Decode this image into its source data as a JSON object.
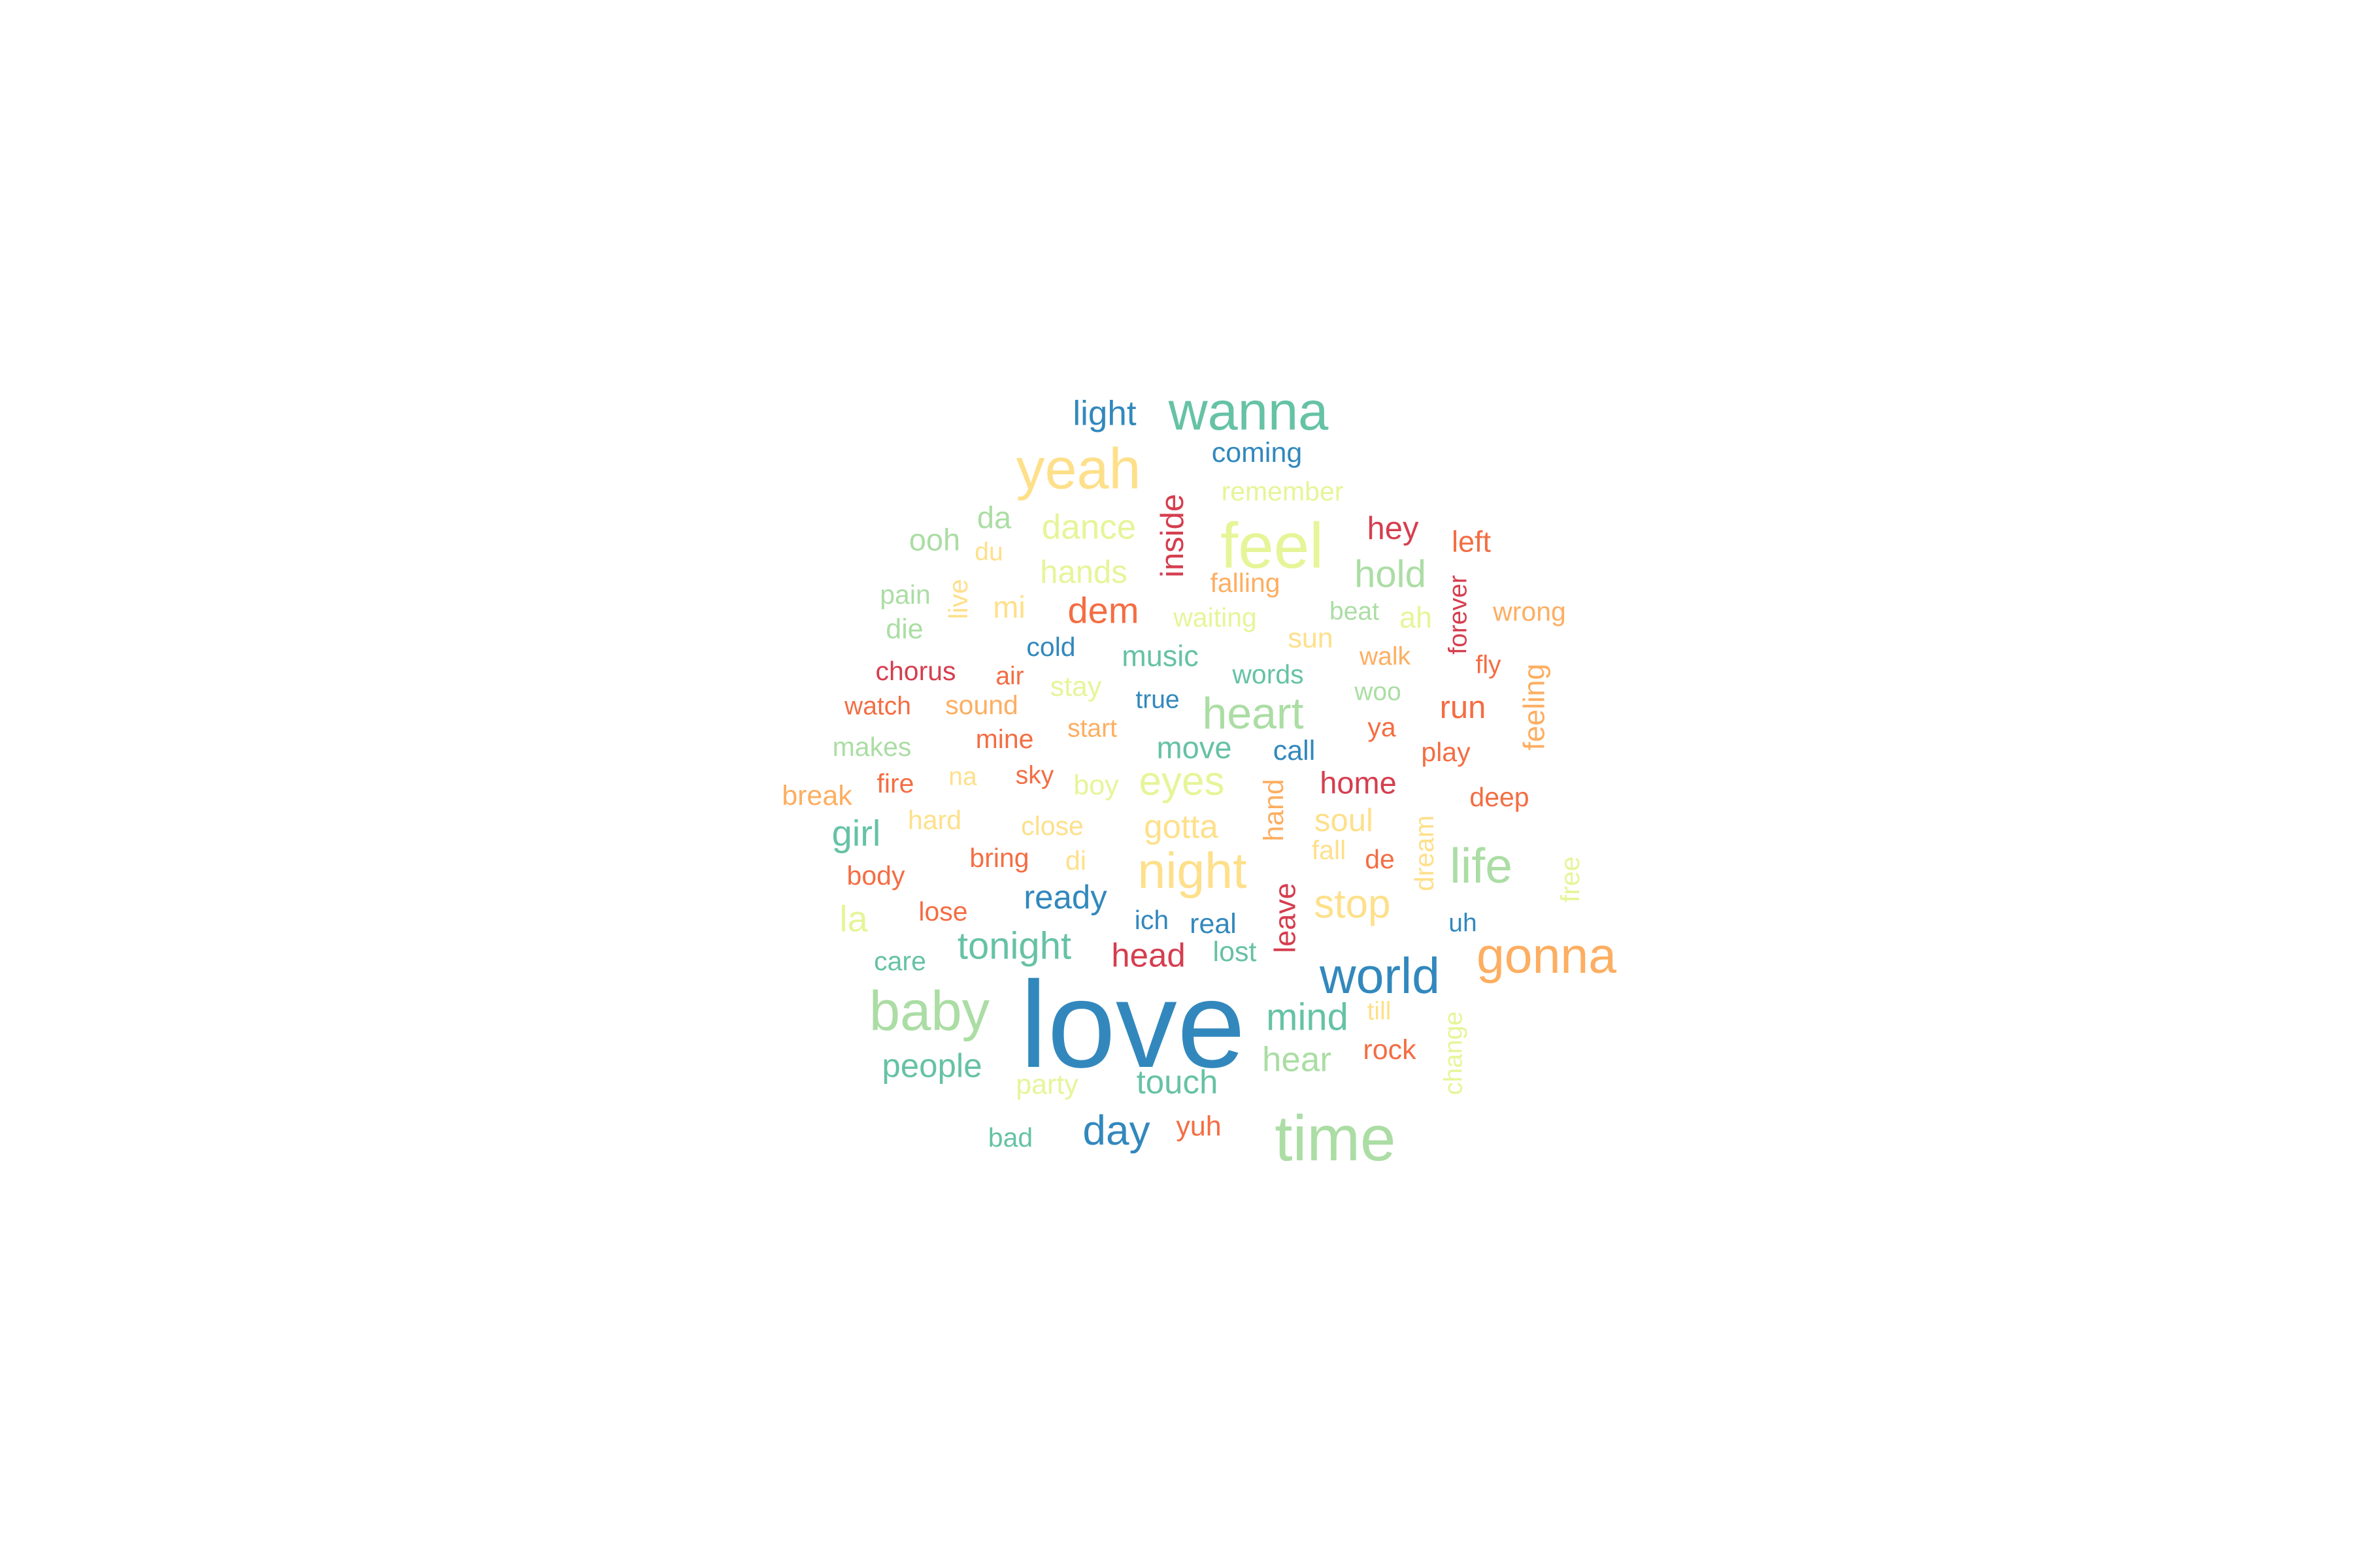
{
  "word_cloud": {
    "palette": {
      "c1": "#d53e4f",
      "c2": "#f46d43",
      "c3": "#fdae61",
      "c4": "#fee08b",
      "c5": "#e6f598",
      "c6": "#abdda4",
      "c7": "#66c2a5",
      "c8": "#3288bd"
    },
    "words": [
      {
        "text": "love",
        "color": "c8",
        "weight": 100,
        "vertical": false
      },
      {
        "text": "time",
        "color": "c6",
        "weight": 52,
        "vertical": false
      },
      {
        "text": "feel",
        "color": "c5",
        "weight": 52,
        "vertical": false
      },
      {
        "text": "yeah",
        "color": "c4",
        "weight": 47,
        "vertical": false
      },
      {
        "text": "baby",
        "color": "c6",
        "weight": 45,
        "vertical": false
      },
      {
        "text": "wanna",
        "color": "c7",
        "weight": 44,
        "vertical": false
      },
      {
        "text": "night",
        "color": "c4",
        "weight": 41,
        "vertical": false
      },
      {
        "text": "gonna",
        "color": "c3",
        "weight": 41,
        "vertical": false
      },
      {
        "text": "world",
        "color": "c8",
        "weight": 41,
        "vertical": false
      },
      {
        "text": "life",
        "color": "c6",
        "weight": 40,
        "vertical": false
      },
      {
        "text": "heart",
        "color": "c6",
        "weight": 36,
        "vertical": false
      },
      {
        "text": "eyes",
        "color": "c5",
        "weight": 33,
        "vertical": false
      },
      {
        "text": "day",
        "color": "c8",
        "weight": 34,
        "vertical": false
      },
      {
        "text": "stop",
        "color": "c4",
        "weight": 33,
        "vertical": false
      },
      {
        "text": "tonight",
        "color": "c7",
        "weight": 31,
        "vertical": false
      },
      {
        "text": "mind",
        "color": "c7",
        "weight": 31,
        "vertical": false
      },
      {
        "text": "hold",
        "color": "c6",
        "weight": 31,
        "vertical": false
      },
      {
        "text": "dem",
        "color": "c2",
        "weight": 30,
        "vertical": false
      },
      {
        "text": "la",
        "color": "c5",
        "weight": 30,
        "vertical": false
      },
      {
        "text": "girl",
        "color": "c7",
        "weight": 30,
        "vertical": false
      },
      {
        "text": "light",
        "color": "c8",
        "weight": 28,
        "vertical": false
      },
      {
        "text": "dance",
        "color": "c5",
        "weight": 28,
        "vertical": false
      },
      {
        "text": "hear",
        "color": "c6",
        "weight": 28,
        "vertical": false
      },
      {
        "text": "touch",
        "color": "c7",
        "weight": 27,
        "vertical": false
      },
      {
        "text": "ready",
        "color": "c8",
        "weight": 27,
        "vertical": false
      },
      {
        "text": "head",
        "color": "c1",
        "weight": 27,
        "vertical": false
      },
      {
        "text": "people",
        "color": "c7",
        "weight": 27,
        "vertical": false
      },
      {
        "text": "gotta",
        "color": "c4",
        "weight": 27,
        "vertical": false
      },
      {
        "text": "hands",
        "color": "c5",
        "weight": 26,
        "vertical": false
      },
      {
        "text": "soul",
        "color": "c4",
        "weight": 26,
        "vertical": false
      },
      {
        "text": "hey",
        "color": "c1",
        "weight": 26,
        "vertical": false
      },
      {
        "text": "inside",
        "color": "c1",
        "weight": 26,
        "vertical": true
      },
      {
        "text": "run",
        "color": "c2",
        "weight": 26,
        "vertical": false
      },
      {
        "text": "move",
        "color": "c7",
        "weight": 25,
        "vertical": false
      },
      {
        "text": "home",
        "color": "c1",
        "weight": 25,
        "vertical": false
      },
      {
        "text": "ooh",
        "color": "c6",
        "weight": 25,
        "vertical": false
      },
      {
        "text": "da",
        "color": "c6",
        "weight": 25,
        "vertical": false
      },
      {
        "text": "mi",
        "color": "c4",
        "weight": 25,
        "vertical": false
      },
      {
        "text": "music",
        "color": "c7",
        "weight": 24,
        "vertical": false
      },
      {
        "text": "left",
        "color": "c2",
        "weight": 24,
        "vertical": false
      },
      {
        "text": "feeling",
        "color": "c3",
        "weight": 24,
        "vertical": true
      },
      {
        "text": "yuh",
        "color": "c2",
        "weight": 23,
        "vertical": false
      },
      {
        "text": "ah",
        "color": "c5",
        "weight": 24,
        "vertical": false
      },
      {
        "text": "leave",
        "color": "c1",
        "weight": 24,
        "vertical": true
      },
      {
        "text": "party",
        "color": "c5",
        "weight": 23,
        "vertical": false
      },
      {
        "text": "rock",
        "color": "c2",
        "weight": 23,
        "vertical": false
      },
      {
        "text": "stay",
        "color": "c5",
        "weight": 23,
        "vertical": false
      },
      {
        "text": "boy",
        "color": "c5",
        "weight": 23,
        "vertical": false
      },
      {
        "text": "coming",
        "color": "c8",
        "weight": 23,
        "vertical": false
      },
      {
        "text": "call",
        "color": "c8",
        "weight": 23,
        "vertical": false
      },
      {
        "text": "sun",
        "color": "c4",
        "weight": 23,
        "vertical": false
      },
      {
        "text": "die",
        "color": "c6",
        "weight": 23,
        "vertical": false
      },
      {
        "text": "hand",
        "color": "c3",
        "weight": 23,
        "vertical": true
      },
      {
        "text": "break",
        "color": "c3",
        "weight": 23,
        "vertical": false
      },
      {
        "text": "real",
        "color": "c8",
        "weight": 23,
        "vertical": false
      },
      {
        "text": "lost",
        "color": "c7",
        "weight": 23,
        "vertical": false
      },
      {
        "text": "body",
        "color": "c2",
        "weight": 22,
        "vertical": false
      },
      {
        "text": "wrong",
        "color": "c3",
        "weight": 22,
        "vertical": false
      },
      {
        "text": "play",
        "color": "c2",
        "weight": 22,
        "vertical": false
      },
      {
        "text": "ya",
        "color": "c2",
        "weight": 22,
        "vertical": false
      },
      {
        "text": "fire",
        "color": "c2",
        "weight": 22,
        "vertical": false
      },
      {
        "text": "free",
        "color": "c5",
        "weight": 22,
        "vertical": true
      },
      {
        "text": "bad",
        "color": "c7",
        "weight": 22,
        "vertical": false
      },
      {
        "text": "words",
        "color": "c7",
        "weight": 22,
        "vertical": false
      },
      {
        "text": "di",
        "color": "c4",
        "weight": 22,
        "vertical": false
      },
      {
        "text": "de",
        "color": "c2",
        "weight": 22,
        "vertical": false
      },
      {
        "text": "live",
        "color": "c4",
        "weight": 22,
        "vertical": true
      },
      {
        "text": "ich",
        "color": "c8",
        "weight": 22,
        "vertical": false
      },
      {
        "text": "remember",
        "color": "c5",
        "weight": 22,
        "vertical": false
      },
      {
        "text": "close",
        "color": "c4",
        "weight": 22,
        "vertical": false
      },
      {
        "text": "falling",
        "color": "c3",
        "weight": 22,
        "vertical": false
      },
      {
        "text": "hard",
        "color": "c4",
        "weight": 22,
        "vertical": false
      },
      {
        "text": "sound",
        "color": "c3",
        "weight": 22,
        "vertical": false
      },
      {
        "text": "bring",
        "color": "c2",
        "weight": 22,
        "vertical": false
      },
      {
        "text": "dream",
        "color": "c4",
        "weight": 22,
        "vertical": true
      },
      {
        "text": "mine",
        "color": "c2",
        "weight": 22,
        "vertical": false
      },
      {
        "text": "care",
        "color": "c7",
        "weight": 22,
        "vertical": false
      },
      {
        "text": "makes",
        "color": "c6",
        "weight": 22,
        "vertical": false
      },
      {
        "text": "chorus",
        "color": "c1",
        "weight": 22,
        "vertical": false
      },
      {
        "text": "waiting",
        "color": "c5",
        "weight": 22,
        "vertical": false
      },
      {
        "text": "pain",
        "color": "c6",
        "weight": 22,
        "vertical": false
      },
      {
        "text": "cold",
        "color": "c8",
        "weight": 22,
        "vertical": false
      },
      {
        "text": "deep",
        "color": "c2",
        "weight": 22,
        "vertical": false
      },
      {
        "text": "lose",
        "color": "c2",
        "weight": 22,
        "vertical": false
      },
      {
        "text": "fall",
        "color": "c4",
        "weight": 22,
        "vertical": false
      },
      {
        "text": "walk",
        "color": "c3",
        "weight": 21,
        "vertical": false
      },
      {
        "text": "na",
        "color": "c4",
        "weight": 21,
        "vertical": false
      },
      {
        "text": "forever",
        "color": "c1",
        "weight": 21,
        "vertical": true
      },
      {
        "text": "air",
        "color": "c2",
        "weight": 21,
        "vertical": false
      },
      {
        "text": "beat",
        "color": "c6",
        "weight": 21,
        "vertical": false
      },
      {
        "text": "watch",
        "color": "c2",
        "weight": 21,
        "vertical": false
      },
      {
        "text": "sky",
        "color": "c2",
        "weight": 21,
        "vertical": false
      },
      {
        "text": "du",
        "color": "c4",
        "weight": 21,
        "vertical": false
      },
      {
        "text": "true",
        "color": "c8",
        "weight": 21,
        "vertical": false
      },
      {
        "text": "start",
        "color": "c3",
        "weight": 21,
        "vertical": false
      },
      {
        "text": "change",
        "color": "c5",
        "weight": 21,
        "vertical": true
      },
      {
        "text": "fly",
        "color": "c2",
        "weight": 21,
        "vertical": false
      },
      {
        "text": "uh",
        "color": "c8",
        "weight": 21,
        "vertical": false
      },
      {
        "text": "woo",
        "color": "c6",
        "weight": 21,
        "vertical": false
      },
      {
        "text": "till",
        "color": "c4",
        "weight": 21,
        "vertical": false
      }
    ]
  }
}
